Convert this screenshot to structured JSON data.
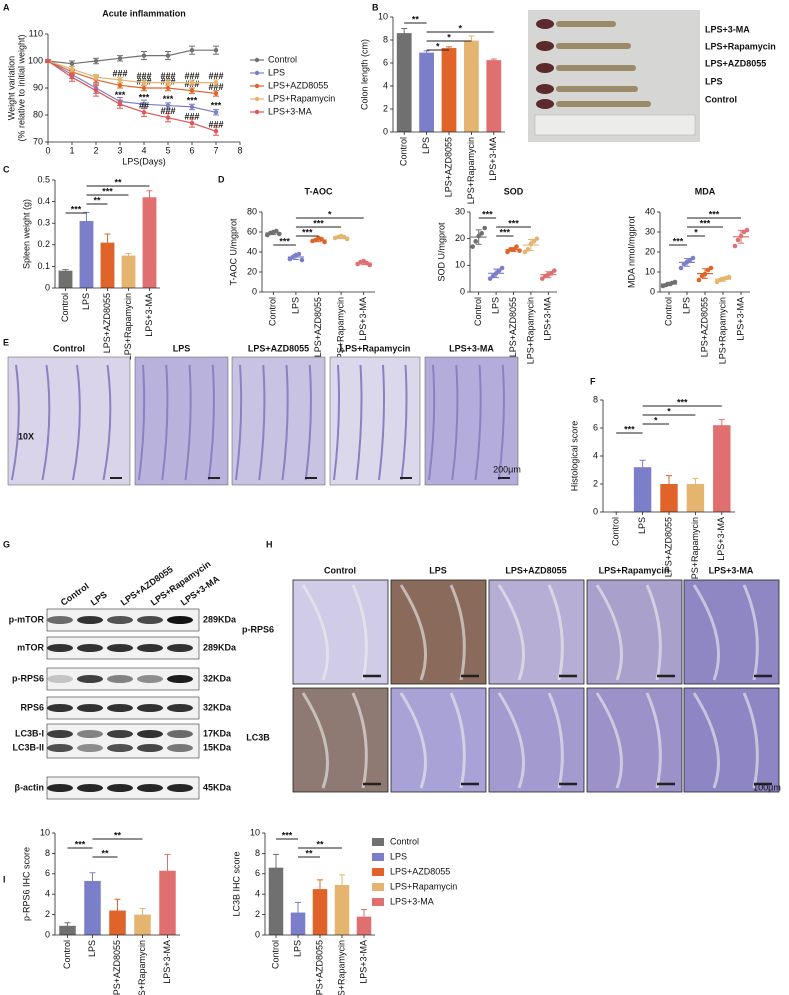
{
  "chart_data": [
    {
      "type": "line",
      "title": "Acute inflammation",
      "xlabel": "LPS(Days)",
      "ylabel": [
        "Weight variation",
        "(% relative to initial weight)"
      ],
      "x": [
        0,
        1,
        2,
        3,
        4,
        5,
        6,
        7
      ],
      "xlim": [
        0,
        8
      ],
      "xticks": [
        0,
        1,
        2,
        3,
        4,
        5,
        6,
        7,
        8
      ],
      "ylim": [
        70,
        110
      ],
      "yticks": [
        70,
        80,
        90,
        100,
        110
      ],
      "legend": "right",
      "series": [
        {
          "name": "Control",
          "color": "#707070",
          "values": [
            100,
            99,
            100,
            101,
            102,
            102,
            104,
            104
          ],
          "errors": [
            0.5,
            1,
            1,
            1,
            1.5,
            1.5,
            1.5,
            1.5
          ],
          "point_labels": [
            null,
            null,
            null,
            null,
            null,
            null,
            null,
            null
          ]
        },
        {
          "name": "LPS",
          "color": "#7b7fc9",
          "values": [
            100,
            95,
            90,
            85,
            84,
            83.5,
            83,
            81
          ],
          "errors": [
            0.5,
            1.5,
            2,
            1.5,
            1.5,
            1,
            1,
            1
          ],
          "point_labels": [
            null,
            null,
            null,
            "***",
            "***",
            "***",
            "***",
            "***"
          ]
        },
        {
          "name": "LPS+AZD8055",
          "color": "#e0642a",
          "values": [
            100,
            96,
            93,
            91,
            90,
            90,
            89,
            88
          ],
          "errors": [
            0.5,
            1,
            1.5,
            1,
            1,
            1,
            1,
            1
          ],
          "point_labels": [
            null,
            null,
            null,
            null,
            "###",
            "###",
            "###",
            "###"
          ]
        },
        {
          "name": "LPS+Rapamycin",
          "color": "#e5b46e",
          "values": [
            100,
            97,
            94,
            93,
            92,
            92,
            92,
            92
          ],
          "errors": [
            0.5,
            1,
            1,
            1,
            1,
            1,
            1,
            1
          ],
          "point_labels": [
            null,
            null,
            null,
            "###",
            "###",
            "###",
            "###",
            "###"
          ]
        },
        {
          "name": "LPS+3-MA",
          "color": "#e05555",
          "values": [
            100,
            94,
            89,
            84,
            81,
            79,
            77,
            74
          ],
          "errors": [
            0.5,
            1.5,
            2,
            1.5,
            1.5,
            1.5,
            1.5,
            1.5
          ],
          "point_labels": [
            null,
            null,
            null,
            null,
            "##",
            "###",
            "###",
            "###"
          ]
        }
      ]
    },
    {
      "type": "bar",
      "ylabel": "Colon length (cm)",
      "categories": [
        "Control",
        "LPS",
        "LPS+AZD8055",
        "LPS+Rapamycin",
        "LPS+3-MA"
      ],
      "colors": [
        "#707070",
        "#7b7fc9",
        "#e0642a",
        "#e5b46e",
        "#e07070"
      ],
      "values": [
        8.6,
        6.9,
        7.3,
        7.95,
        6.25
      ],
      "errors": [
        0.4,
        0.15,
        0.1,
        0.4,
        0.1
      ],
      "ylim": [
        0,
        10
      ],
      "yticks": [
        0,
        2,
        4,
        6,
        8,
        10
      ],
      "annotations": [
        {
          "text": "*",
          "span": [
            1,
            2
          ]
        },
        {
          "text": "*",
          "span": [
            1,
            3
          ]
        },
        {
          "text": "*",
          "span": [
            1,
            4
          ]
        },
        {
          "text": "**",
          "span": [
            0,
            1
          ]
        }
      ]
    },
    {
      "type": "bar",
      "ylabel": "Spleen weight (g)",
      "categories": [
        "Control",
        "LPS",
        "LPS+AZD8055",
        "LPS+Rapamycin",
        "LPS+3-MA"
      ],
      "colors": [
        "#707070",
        "#7b7fc9",
        "#e0642a",
        "#e5b46e",
        "#e07070"
      ],
      "values": [
        0.08,
        0.31,
        0.21,
        0.15,
        0.42
      ],
      "errors": [
        0.005,
        0.04,
        0.04,
        0.01,
        0.03
      ],
      "ylim": [
        0,
        0.5
      ],
      "yticks": [
        0,
        0.1,
        0.2,
        0.3,
        0.4,
        0.5
      ],
      "annotations": [
        {
          "text": "***",
          "span": [
            0,
            1
          ]
        },
        {
          "text": "**",
          "span": [
            1,
            2
          ]
        },
        {
          "text": "***",
          "span": [
            1,
            3
          ]
        },
        {
          "text": "**",
          "span": [
            1,
            4
          ]
        }
      ]
    },
    {
      "type": "dot",
      "title": "T-AOC",
      "ylabel": "T-AOC U/mgprot",
      "categories": [
        "Control",
        "LPS",
        "LPS+AZD8055",
        "LPS+Rapamycin",
        "LPS+3-MA"
      ],
      "colors": [
        "#707070",
        "#7b7fc9",
        "#e0642a",
        "#e5b46e",
        "#e07070"
      ],
      "points": [
        [
          57,
          59,
          60,
          61,
          58
        ],
        [
          33,
          35,
          37,
          38,
          32
        ],
        [
          51,
          52,
          54,
          53,
          50
        ],
        [
          54,
          55,
          56,
          55,
          53
        ],
        [
          28,
          30,
          31,
          29,
          27
        ]
      ],
      "values": [
        59,
        35,
        52,
        54.6,
        29
      ],
      "errors": [
        1.6,
        2.5,
        1.6,
        1.1,
        1.6
      ],
      "ylim": [
        0,
        80
      ],
      "yticks": [
        0,
        20,
        40,
        60,
        80
      ],
      "annotations": [
        {
          "text": "***",
          "span": [
            0,
            1
          ]
        },
        {
          "text": "***",
          "span": [
            1,
            2
          ]
        },
        {
          "text": "***",
          "span": [
            1,
            3
          ]
        },
        {
          "text": "*",
          "span": [
            1,
            4
          ]
        }
      ]
    },
    {
      "type": "dot",
      "title": "SOD",
      "ylabel": "SOD U/mgprot",
      "categories": [
        "Control",
        "LPS",
        "LPS+AZD8055",
        "LPS+Rapamycin",
        "LPS+3-MA"
      ],
      "colors": [
        "#707070",
        "#7b7fc9",
        "#e0642a",
        "#e5b46e",
        "#e07070"
      ],
      "points": [
        [
          17,
          19,
          21,
          22,
          24
        ],
        [
          5,
          6,
          7,
          8,
          9
        ],
        [
          15,
          16,
          16,
          17,
          15.5
        ],
        [
          15,
          16,
          18,
          19,
          20
        ],
        [
          5,
          6,
          6.5,
          7,
          8
        ]
      ],
      "values": [
        20.6,
        7,
        15.9,
        17.6,
        6.5
      ],
      "errors": [
        2.7,
        1.6,
        0.7,
        2.1,
        1.1
      ],
      "ylim": [
        0,
        30
      ],
      "yticks": [
        0,
        10,
        20,
        30
      ],
      "annotations": [
        {
          "text": "***",
          "span": [
            1,
            2
          ]
        },
        {
          "text": "***",
          "span": [
            1,
            3
          ]
        },
        {
          "text": "***",
          "span": [
            0,
            1
          ]
        }
      ]
    },
    {
      "type": "dot",
      "title": "MDA",
      "ylabel": "MDA nmol/mgprot",
      "categories": [
        "Control",
        "LPS",
        "LPS+AZD8055",
        "LPS+Rapamycin",
        "LPS+3-MA"
      ],
      "colors": [
        "#707070",
        "#7b7fc9",
        "#e0642a",
        "#e5b46e",
        "#e07070"
      ],
      "points": [
        [
          3,
          3.5,
          4,
          4.5,
          5
        ],
        [
          12,
          14,
          15,
          16,
          17
        ],
        [
          6,
          8,
          9,
          11,
          12
        ],
        [
          5,
          6,
          6.5,
          7,
          7.5
        ],
        [
          23,
          26,
          28,
          30,
          31
        ]
      ],
      "values": [
        4,
        14.8,
        9.2,
        6.4,
        27.6
      ],
      "errors": [
        0.8,
        1.9,
        2.4,
        1,
        3.2
      ],
      "ylim": [
        0,
        40
      ],
      "yticks": [
        0,
        10,
        20,
        30,
        40
      ],
      "annotations": [
        {
          "text": "***",
          "span": [
            0,
            1
          ]
        },
        {
          "text": "*",
          "span": [
            1,
            2
          ]
        },
        {
          "text": "***",
          "span": [
            1,
            3
          ]
        },
        {
          "text": "***",
          "span": [
            1,
            4
          ]
        }
      ]
    },
    {
      "type": "bar",
      "ylabel": "Histological score",
      "categories": [
        "Control",
        "LPS",
        "LPS+AZD8055",
        "LPS+Rapamycin",
        "LPS+3-MA"
      ],
      "colors": [
        "#707070",
        "#7b7fc9",
        "#e0642a",
        "#e5b46e",
        "#e07070"
      ],
      "values": [
        0,
        3.2,
        2.0,
        2.0,
        6.2
      ],
      "errors": [
        0,
        0.5,
        0.6,
        0.4,
        0.4
      ],
      "ylim": [
        0,
        8
      ],
      "yticks": [
        0,
        2,
        4,
        6,
        8
      ],
      "annotations": [
        {
          "text": "***",
          "span": [
            0,
            1
          ]
        },
        {
          "text": "*",
          "span": [
            1,
            2
          ]
        },
        {
          "text": "*",
          "span": [
            1,
            3
          ]
        },
        {
          "text": "***",
          "span": [
            1,
            4
          ]
        }
      ]
    },
    {
      "type": "bar",
      "ylabel": "p-RPS6 IHC score",
      "categories": [
        "Control",
        "LPS",
        "LPS+AZD8055",
        "LPS+Rapamycin",
        "LPS+3-MA"
      ],
      "colors": [
        "#707070",
        "#7b7fc9",
        "#e0642a",
        "#e5b46e",
        "#e07070"
      ],
      "values": [
        0.9,
        5.3,
        2.4,
        2.0,
        6.3
      ],
      "errors": [
        0.3,
        0.8,
        1.1,
        0.6,
        1.6
      ],
      "ylim": [
        0,
        10
      ],
      "yticks": [
        0,
        2,
        4,
        6,
        8,
        10
      ],
      "annotations": [
        {
          "text": "**",
          "span": [
            1,
            2
          ]
        },
        {
          "text": "***",
          "span": [
            0,
            1
          ]
        },
        {
          "text": "**",
          "span": [
            1,
            3
          ]
        }
      ]
    },
    {
      "type": "bar",
      "ylabel": "LC3B IHC score",
      "categories": [
        "Control",
        "LPS",
        "LPS+AZD8055",
        "LPS+Rapamycin",
        "LPS+3-MA"
      ],
      "colors": [
        "#707070",
        "#7b7fc9",
        "#e0642a",
        "#e5b46e",
        "#e07070"
      ],
      "values": [
        6.6,
        2.2,
        4.5,
        4.9,
        1.8
      ],
      "errors": [
        1.3,
        1.0,
        0.9,
        1.0,
        0.7
      ],
      "ylim": [
        0,
        10
      ],
      "yticks": [
        0,
        2,
        4,
        6,
        8,
        10
      ],
      "legend": "right",
      "annotations": [
        {
          "text": "**",
          "span": [
            1,
            2
          ]
        },
        {
          "text": "**",
          "span": [
            1,
            3
          ]
        },
        {
          "text": "***",
          "span": [
            0,
            1
          ]
        }
      ]
    }
  ],
  "figure": {
    "panel_letters": [
      "A",
      "B",
      "C",
      "D",
      "E",
      "F",
      "G",
      "H",
      "I"
    ],
    "colon_photo_labels": [
      "LPS+3-MA",
      "LPS+Rapamycin",
      "LPS+AZD8055",
      "LPS",
      "Control"
    ],
    "histology": {
      "columns": [
        "Control",
        "LPS",
        "LPS+AZD8055",
        "LPS+Rapamycin",
        "LPS+3-MA"
      ],
      "magnification": "10X",
      "scale_bar": "200μm"
    },
    "western_blot": {
      "lanes": [
        "Control",
        "LPS",
        "LPS+AZD8055",
        "LPS+Rapamycin",
        "LPS+3-MA"
      ],
      "rows": [
        {
          "labels": [
            "p-mTOR"
          ],
          "sizes": [
            "289KDa"
          ]
        },
        {
          "labels": [
            "mTOR"
          ],
          "sizes": [
            "289KDa"
          ]
        },
        {
          "labels": [
            "p-RPS6"
          ],
          "sizes": [
            "32KDa"
          ]
        },
        {
          "labels": [
            "RPS6"
          ],
          "sizes": [
            "32KDa"
          ]
        },
        {
          "labels": [
            "LC3B-I",
            "LC3B-II"
          ],
          "sizes": [
            "17KDa",
            "15KDa"
          ]
        },
        {
          "labels": [
            "β-actin"
          ],
          "sizes": [
            "45KDa"
          ]
        }
      ]
    },
    "ihc": {
      "columns": [
        "Control",
        "LPS",
        "LPS+AZD8055",
        "LPS+Rapamycin",
        "LPS+3-MA"
      ],
      "rows": [
        "p-RPS6",
        "LC3B"
      ],
      "scale_bar": "100μm"
    }
  }
}
